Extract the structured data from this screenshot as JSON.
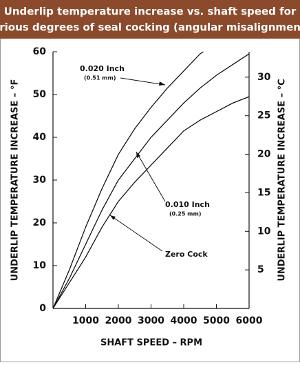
{
  "chart_data": {
    "type": "line",
    "title": [
      "Underlip temperature increase vs. shaft speed for",
      "various degrees of seal cocking (angular misalignment)."
    ],
    "x_label": "SHAFT SPEED – RPM",
    "y_label": "UNDERLIP TEMPERATURE INCREASE – °F",
    "y2_label": "UNDERLIP TEMPERATURE INCREASE – °C",
    "xlim": [
      0,
      6000
    ],
    "xticks": [
      1000,
      2000,
      3000,
      4000,
      5000,
      6000
    ],
    "ylim": [
      0,
      60
    ],
    "yticks": [
      0,
      10,
      20,
      30,
      40,
      50,
      60
    ],
    "y2lim": [
      0,
      33.3
    ],
    "y2ticks": [
      5,
      10,
      15,
      20,
      25,
      30
    ],
    "series": [
      {
        "name": "0.020 Inch",
        "note": "(0.51 mm)",
        "color": "#111111",
        "x": [
          0,
          500,
          1000,
          1500,
          2000,
          2500,
          3000,
          3500,
          4000,
          4500,
          4600
        ],
        "values": [
          0,
          9,
          19,
          28,
          36,
          42,
          47,
          51.5,
          55.5,
          59.5,
          60
        ]
      },
      {
        "name": "0.010 Inch",
        "note": "(0.25 mm)",
        "color": "#111111",
        "x": [
          0,
          500,
          1000,
          1500,
          2000,
          2500,
          3000,
          3500,
          4000,
          4500,
          5000,
          5500,
          6000
        ],
        "values": [
          0,
          7,
          15,
          23,
          30,
          35,
          40,
          44,
          48,
          51.5,
          54.5,
          57,
          59.5
        ]
      },
      {
        "name": "Zero Cock",
        "color": "#111111",
        "x": [
          0,
          500,
          1000,
          1500,
          2000,
          2500,
          3000,
          3500,
          4000,
          4500,
          5000,
          5500,
          6000
        ],
        "values": [
          0,
          6,
          12,
          19,
          25,
          29.5,
          33.5,
          37.5,
          41.5,
          44,
          46,
          48,
          49.5
        ]
      }
    ]
  }
}
